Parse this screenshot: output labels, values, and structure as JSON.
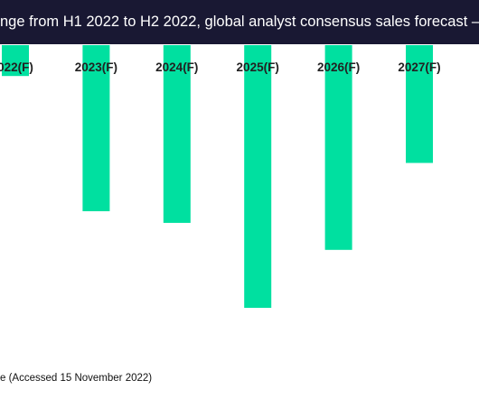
{
  "chart_data": {
    "type": "bar",
    "title": "nge from H1 2022 to H2 2022, global analyst consensus sales forecast –",
    "categories": [
      "022(F)",
      "2023(F)",
      "2024(F)",
      "2025(F)",
      "2026(F)",
      "2027(F)"
    ],
    "values": [
      -1.6,
      -8.6,
      -9.2,
      -13.6,
      -10.6,
      -6.1
    ],
    "bar_color": "#00e0a0",
    "xlabel": "",
    "ylabel": "",
    "grid": false,
    "legend": "none"
  },
  "footer": {
    "source_text": "e (Accessed 15 November 2022)"
  }
}
